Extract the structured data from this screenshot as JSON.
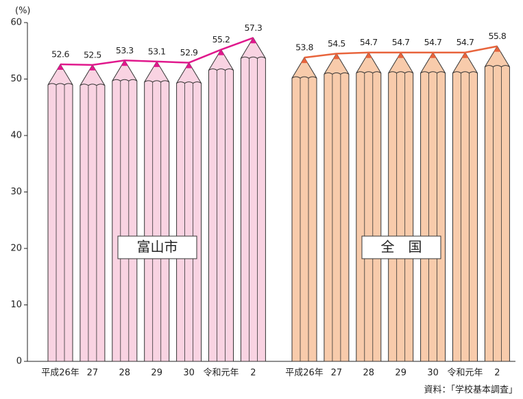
{
  "chart_data": {
    "type": "pencil-bar",
    "y_unit": "(%)",
    "ylim": [
      0,
      60
    ],
    "yticks": [
      0,
      10,
      20,
      30,
      40,
      50,
      60
    ],
    "source": "資料：「学校基本調査」",
    "groups": [
      {
        "name": "富山市",
        "color": "#f9d3e2",
        "line_color": "#e0188c",
        "categories": [
          "平成26年",
          "27",
          "28",
          "29",
          "30",
          "令和元年",
          "2"
        ],
        "values": [
          52.6,
          52.5,
          53.3,
          53.1,
          52.9,
          55.2,
          57.3
        ]
      },
      {
        "name": "全　国",
        "color": "#f8cbab",
        "line_color": "#e8643c",
        "categories": [
          "平成26年",
          "27",
          "28",
          "29",
          "30",
          "令和元年",
          "2"
        ],
        "values": [
          53.8,
          54.5,
          54.7,
          54.7,
          54.7,
          54.7,
          55.8
        ]
      }
    ]
  }
}
